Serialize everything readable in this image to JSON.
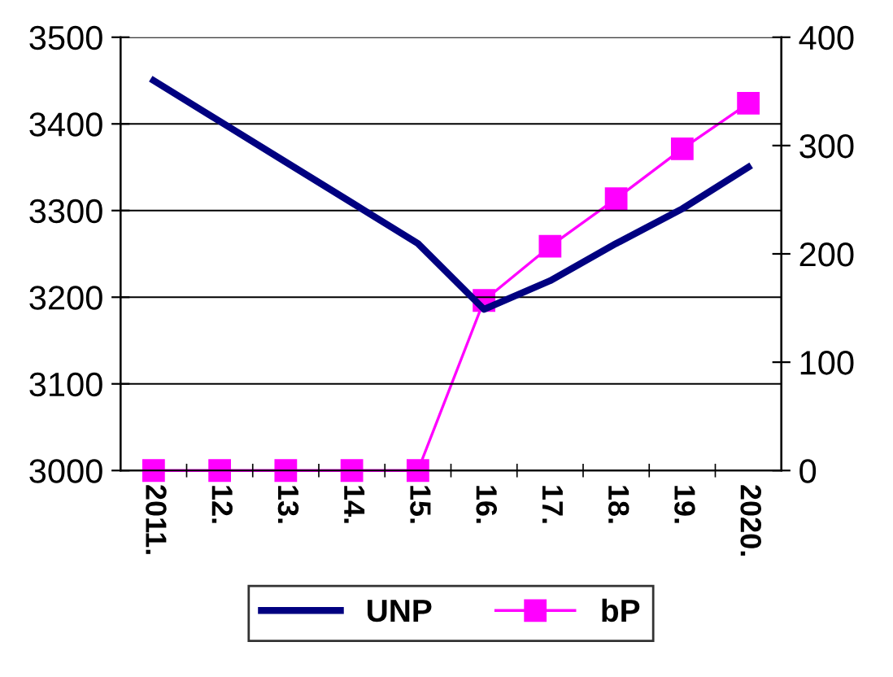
{
  "chart_data": {
    "type": "line",
    "categories": [
      "2011.",
      "12.",
      "13.",
      "14.",
      "15.",
      "16.",
      "17.",
      "18.",
      "19.",
      "2020."
    ],
    "series": [
      {
        "name": "UNP",
        "color": "#000080",
        "values": [
          3450,
          3403,
          3356,
          3309,
          3262,
          3186,
          3219,
          3262,
          3302,
          3350
        ],
        "marker": "none"
      },
      {
        "name": "bP",
        "color": "#ff00ff",
        "values": [
          0,
          0,
          0,
          0,
          0,
          157,
          207,
          251,
          297,
          339
        ],
        "axis": "y2",
        "marker": "square"
      }
    ],
    "ylim": [
      3000,
      3500
    ],
    "yticks": [
      3000,
      3100,
      3200,
      3300,
      3400,
      3500
    ],
    "y2lim": [
      0,
      400
    ],
    "y2ticks": [
      0,
      100,
      200,
      300,
      400
    ],
    "grid": "y",
    "legend": "bottom"
  }
}
